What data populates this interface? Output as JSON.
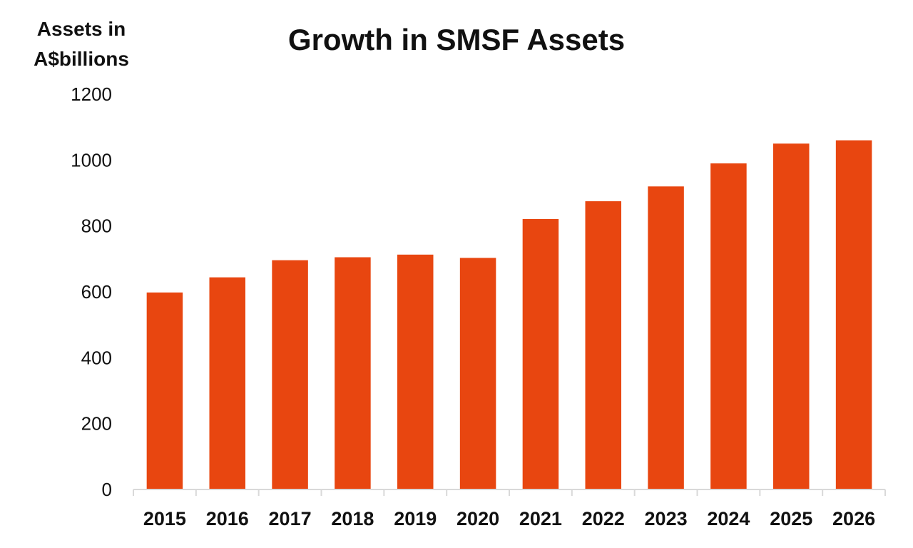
{
  "chart_data": {
    "type": "bar",
    "title": "Growth in SMSF Assets",
    "ylabel_lines": [
      "Assets in",
      "A$billions"
    ],
    "xlabel": "",
    "categories": [
      "2015",
      "2016",
      "2017",
      "2018",
      "2019",
      "2020",
      "2021",
      "2022",
      "2023",
      "2024",
      "2025",
      "2026"
    ],
    "series": [
      {
        "values": [
          598,
          644,
          696,
          705,
          713,
          703,
          821,
          875,
          920,
          990,
          1050,
          1060
        ]
      }
    ],
    "ylim": [
      0,
      1200
    ],
    "yticks": [
      0,
      200,
      400,
      600,
      800,
      1000,
      1200
    ],
    "bar_color": "#E84610",
    "grid": false,
    "legend": "none"
  }
}
